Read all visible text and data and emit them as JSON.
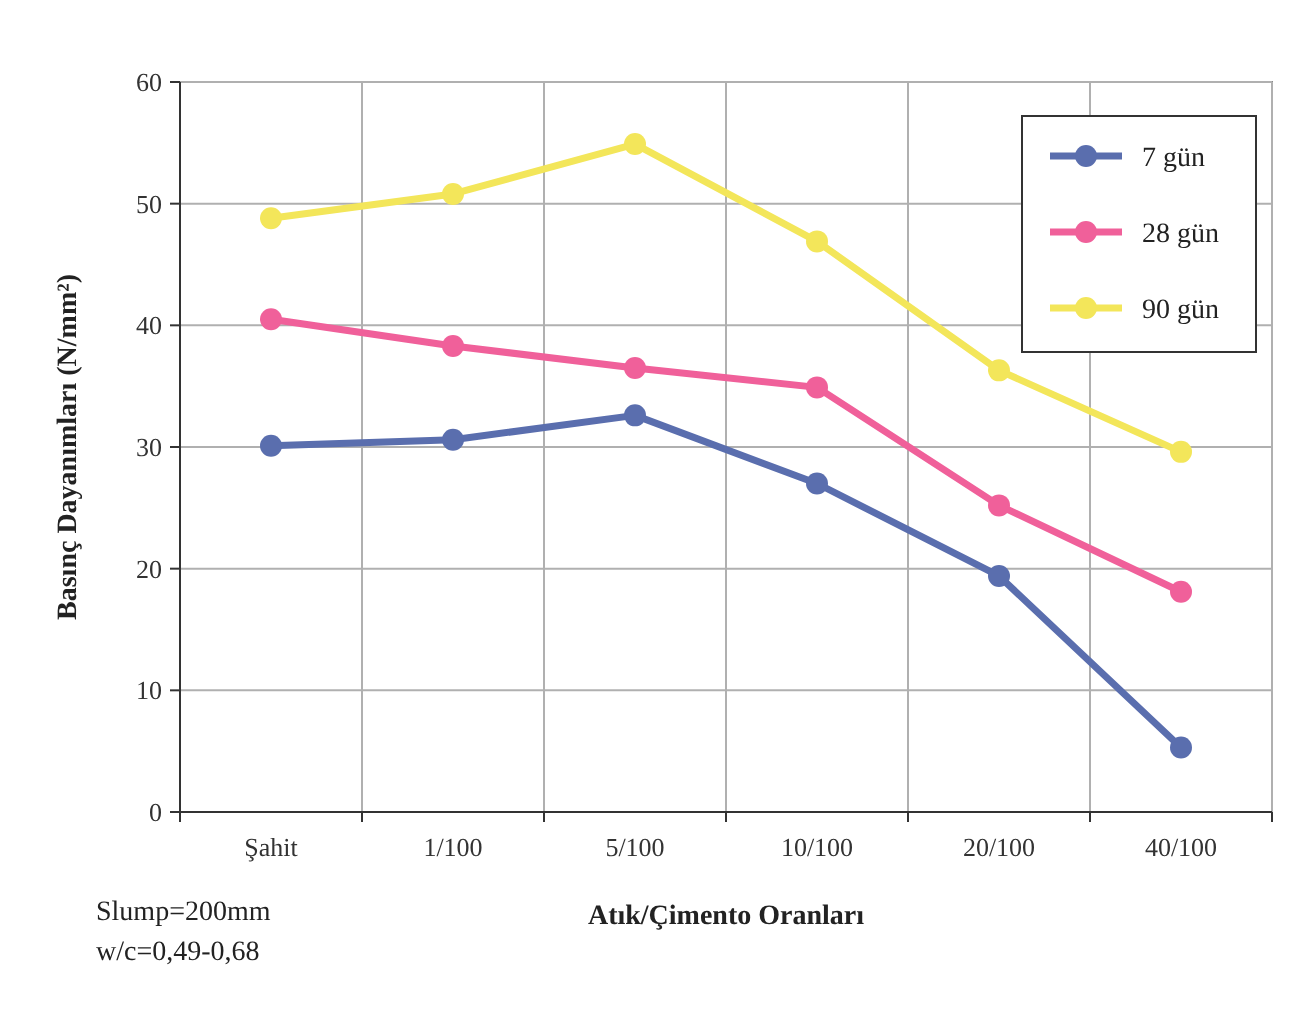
{
  "chart_data": {
    "type": "line",
    "xlabel": "Atık/Çimento Oranları",
    "ylabel": "Basınç Dayanımları (N/mm²)",
    "categories": [
      "Şahit",
      "1/100",
      "5/100",
      "10/100",
      "20/100",
      "40/100"
    ],
    "series": [
      {
        "name": "7 gün",
        "color": "#5a6eae",
        "values": [
          30.1,
          30.6,
          32.6,
          27.0,
          19.4,
          5.3
        ]
      },
      {
        "name": "28 gün",
        "color": "#f0609a",
        "values": [
          40.5,
          38.3,
          36.5,
          34.9,
          25.2,
          18.1
        ]
      },
      {
        "name": "90 gün",
        "color": "#f3e65a",
        "values": [
          48.8,
          50.8,
          54.9,
          46.9,
          36.3,
          29.6
        ]
      }
    ],
    "ylim": [
      0,
      60
    ],
    "yticks": [
      0,
      10,
      20,
      30,
      40,
      50,
      60
    ],
    "grid": true,
    "legend": "top right",
    "marker": "circle",
    "line_style": "solid",
    "annotations": [
      "Slump=200mm",
      "w/c=0,49-0,68"
    ]
  }
}
